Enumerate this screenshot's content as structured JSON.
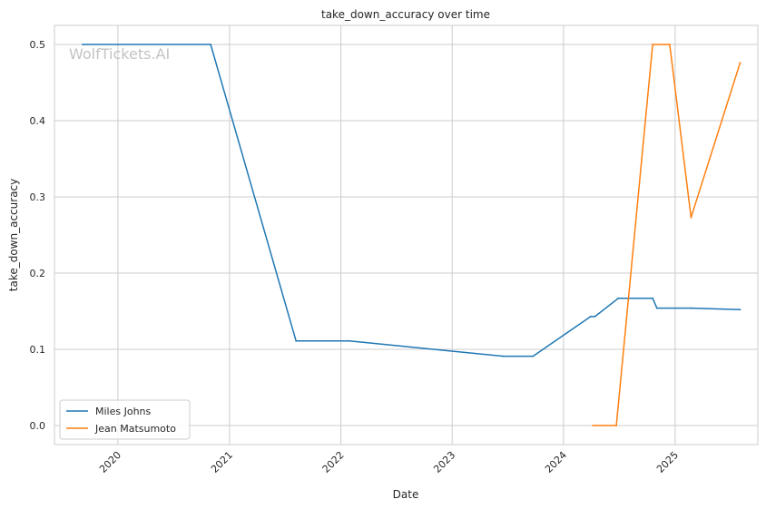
{
  "chart_data": {
    "type": "line",
    "title": "take_down_accuracy over time",
    "xlabel": "Date",
    "ylabel": "take_down_accuracy",
    "watermark": "WolfTickets.AI",
    "x_axis_type": "date",
    "xlim": [
      "2019-06-07",
      "2025-09-29"
    ],
    "ylim": [
      -0.025,
      0.525
    ],
    "x_ticks": [
      {
        "date": "2020-01-01",
        "label": "2020"
      },
      {
        "date": "2021-01-01",
        "label": "2021"
      },
      {
        "date": "2022-01-01",
        "label": "2022"
      },
      {
        "date": "2023-01-01",
        "label": "2023"
      },
      {
        "date": "2024-01-01",
        "label": "2024"
      },
      {
        "date": "2025-01-01",
        "label": "2025"
      }
    ],
    "y_ticks": [
      {
        "value": 0.0,
        "label": "0.0"
      },
      {
        "value": 0.1,
        "label": "0.1"
      },
      {
        "value": 0.2,
        "label": "0.2"
      },
      {
        "value": 0.3,
        "label": "0.3"
      },
      {
        "value": 0.4,
        "label": "0.4"
      },
      {
        "value": 0.5,
        "label": "0.5"
      }
    ],
    "grid": true,
    "legend_position": "lower-left",
    "series": [
      {
        "name": "Miles Johns",
        "color": "#1f77b4",
        "points": [
          {
            "x": "2019-09-07",
            "y": 0.5
          },
          {
            "x": "2020-10-31",
            "y": 0.5
          },
          {
            "x": "2021-08-07",
            "y": 0.111
          },
          {
            "x": "2022-01-29",
            "y": 0.111
          },
          {
            "x": "2023-06-17",
            "y": 0.091
          },
          {
            "x": "2023-09-23",
            "y": 0.091
          },
          {
            "x": "2024-03-30",
            "y": 0.143
          },
          {
            "x": "2024-04-13",
            "y": 0.143
          },
          {
            "x": "2024-06-29",
            "y": 0.167
          },
          {
            "x": "2024-10-19",
            "y": 0.167
          },
          {
            "x": "2024-11-02",
            "y": 0.154
          },
          {
            "x": "2025-02-22",
            "y": 0.154
          },
          {
            "x": "2025-08-02",
            "y": 0.152
          }
        ]
      },
      {
        "name": "Jean Matsumoto",
        "color": "#ff7f0e",
        "points": [
          {
            "x": "2024-04-06",
            "y": 0.0
          },
          {
            "x": "2024-06-22",
            "y": 0.0
          },
          {
            "x": "2024-10-19",
            "y": 0.5
          },
          {
            "x": "2024-12-14",
            "y": 0.5
          },
          {
            "x": "2025-02-22",
            "y": 0.273
          },
          {
            "x": "2025-08-02",
            "y": 0.476
          }
        ]
      }
    ]
  }
}
